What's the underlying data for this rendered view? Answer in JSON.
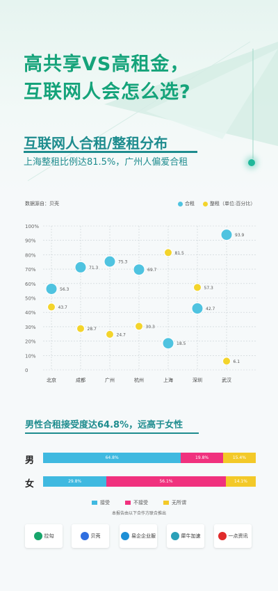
{
  "header": {
    "title_line1": "高共享VS高租金，",
    "title_line2": "互联网人会怎么选?",
    "subtitle": "互联网人合租/整租分布",
    "subtitle2": "上海整租比例达81.5%，广州人偏爱合租"
  },
  "colors": {
    "shared": "#4fc3e0",
    "whole": "#f3d42c",
    "accept": "#3fb9e0",
    "reject": "#f0317e",
    "indifferent": "#f3c928",
    "brand": "#15a37a"
  },
  "chart_data": [
    {
      "type": "scatter",
      "source": "数据源自：贝壳",
      "legend_unit": "（单位:百分比）",
      "categories": [
        "北京",
        "成都",
        "广州",
        "杭州",
        "上海",
        "深圳",
        "武汉"
      ],
      "yticks": [
        "0",
        "10%",
        "20%",
        "30%",
        "40%",
        "50%",
        "60%",
        "70%",
        "80%",
        "90%",
        "100%"
      ],
      "ylim": [
        0,
        100
      ],
      "series": [
        {
          "name": "合租",
          "values": [
            56.3,
            71.3,
            75.3,
            69.7,
            18.5,
            42.7,
            93.9
          ],
          "labels": [
            "56.3",
            "71.3",
            "75.3",
            "69.7",
            "18.5",
            "42.7",
            "93.9"
          ]
        },
        {
          "name": "整租",
          "values": [
            43.7,
            28.7,
            24.7,
            30.3,
            81.5,
            57.3,
            6.1
          ],
          "labels": [
            "43.7",
            "28.7",
            "24.7",
            "30.3",
            "81.5",
            "57.3",
            "6.1"
          ]
        }
      ]
    },
    {
      "type": "bar",
      "stacked": true,
      "orientation": "horizontal",
      "title": "男性合租接受度达64.8%，远高于女性",
      "categories": [
        "男",
        "女"
      ],
      "series": [
        {
          "name": "接受",
          "values": [
            64.8,
            29.8
          ],
          "labels": [
            "64.8%",
            "29.8%"
          ]
        },
        {
          "name": "不接受",
          "values": [
            19.8,
            56.1
          ],
          "labels": [
            "19.8%",
            "56.1%"
          ]
        },
        {
          "name": "无所谓",
          "values": [
            15.4,
            14.1
          ],
          "labels": [
            "15.4%",
            "14.1%"
          ]
        }
      ]
    }
  ],
  "partners": {
    "title": "本报告由以下合作方联合推出",
    "items": [
      {
        "name": "拉勾",
        "icon": "lagou-logo-icon",
        "color": "#17a56b"
      },
      {
        "name": "贝壳",
        "icon": "beike-logo-icon",
        "color": "#2f6fe0"
      },
      {
        "name": "易企企业服",
        "icon": "yiqi-logo-icon",
        "color": "#1d8fd6"
      },
      {
        "name": "犀牛加速",
        "icon": "xiniu-logo-icon",
        "color": "#2aa0b8"
      },
      {
        "name": "一点资讯",
        "icon": "yidian-logo-icon",
        "color": "#e02b2b"
      }
    ]
  }
}
